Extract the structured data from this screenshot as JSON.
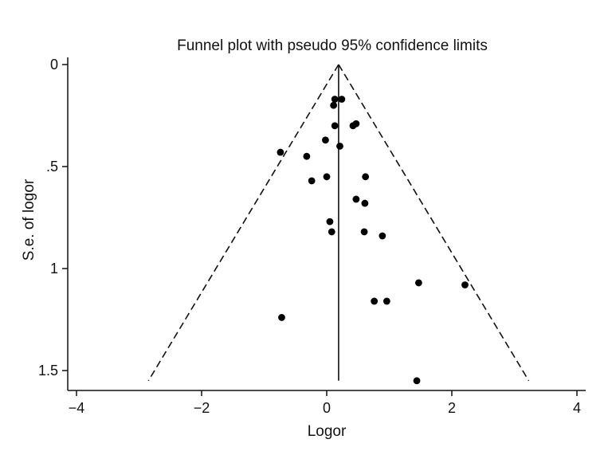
{
  "chart_data": {
    "type": "scatter",
    "title": "Funnel plot with pseudo 95% confidence limits",
    "xlabel": "Logor",
    "ylabel": "S.e. of logor",
    "xlim": [
      -4.2,
      4.0
    ],
    "ylim": [
      0,
      1.6
    ],
    "y_inverted": true,
    "x_ticks": [
      {
        "value": -4,
        "label": "−4"
      },
      {
        "value": -2,
        "label": "−2"
      },
      {
        "value": 0,
        "label": "0"
      },
      {
        "value": 2,
        "label": "2"
      },
      {
        "value": 4,
        "label": "4"
      }
    ],
    "y_ticks": [
      {
        "value": 0,
        "label": "0"
      },
      {
        "value": 0.5,
        "label": ".5"
      },
      {
        "value": 1,
        "label": "1"
      },
      {
        "value": 1.5,
        "label": "1.5"
      }
    ],
    "grid": false,
    "pooled_estimate": 0.19,
    "reference_line": {
      "x": 0.19,
      "y_range": [
        0,
        1.55
      ]
    },
    "confidence_limits": {
      "level": 0.95,
      "style": "dashed",
      "apex": {
        "x": 0.19,
        "y": 0
      },
      "left_end": {
        "x": -2.85,
        "y": 1.55
      },
      "right_end": {
        "x": 3.23,
        "y": 1.55
      }
    },
    "points": [
      {
        "x": 0.13,
        "y": 0.17
      },
      {
        "x": 0.24,
        "y": 0.17
      },
      {
        "x": 0.11,
        "y": 0.2
      },
      {
        "x": 0.42,
        "y": 0.3
      },
      {
        "x": 0.47,
        "y": 0.29
      },
      {
        "x": 0.13,
        "y": 0.3
      },
      {
        "x": -0.02,
        "y": 0.37
      },
      {
        "x": 0.21,
        "y": 0.4
      },
      {
        "x": -0.74,
        "y": 0.43
      },
      {
        "x": -0.32,
        "y": 0.45
      },
      {
        "x": 0.62,
        "y": 0.55
      },
      {
        "x": -0.24,
        "y": 0.57
      },
      {
        "x": 0.0,
        "y": 0.55
      },
      {
        "x": 0.47,
        "y": 0.66
      },
      {
        "x": 0.61,
        "y": 0.68
      },
      {
        "x": 0.05,
        "y": 0.77
      },
      {
        "x": 0.08,
        "y": 0.82
      },
      {
        "x": 0.6,
        "y": 0.82
      },
      {
        "x": 0.89,
        "y": 0.84
      },
      {
        "x": 1.47,
        "y": 1.07
      },
      {
        "x": 2.21,
        "y": 1.08
      },
      {
        "x": 0.76,
        "y": 1.16
      },
      {
        "x": 0.96,
        "y": 1.16
      },
      {
        "x": -0.72,
        "y": 1.24
      },
      {
        "x": 1.44,
        "y": 1.55
      }
    ]
  }
}
